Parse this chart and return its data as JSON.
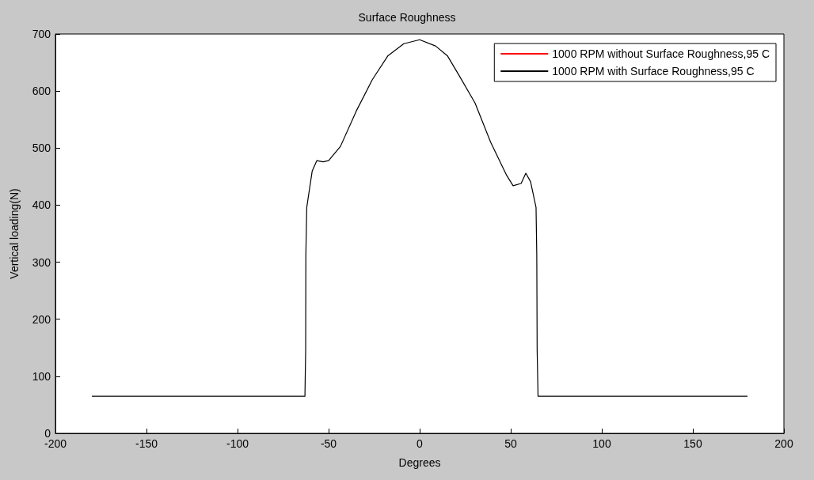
{
  "chart_data": {
    "type": "line",
    "title": "Surface Roughness",
    "xlabel": "Degrees",
    "ylabel": "Vertical loading(N)",
    "x": [
      -180,
      -63,
      -62.6,
      -62.5,
      -62,
      -59,
      -56.5,
      -53,
      -50,
      -43.5,
      -34.8,
      -26,
      -17.4,
      -8.7,
      0,
      8.7,
      15.2,
      21.7,
      30.4,
      39,
      47.8,
      51.3,
      55.7,
      58.3,
      60.9,
      63.9,
      64.3,
      64.5,
      65,
      180
    ],
    "series": [
      {
        "name": "1000 RPM without Surface Roughness,95 C",
        "color": "#ff0000",
        "values": [
          null,
          null,
          null,
          null,
          null,
          null,
          null,
          null,
          null,
          null,
          null,
          null,
          null,
          null,
          null,
          null,
          null,
          null,
          null,
          null,
          null,
          null,
          null,
          null,
          null,
          null,
          null,
          null,
          null,
          null
        ]
      },
      {
        "name": "1000 RPM with Surface Roughness,95 C",
        "color": "#000000",
        "values": [
          65,
          65,
          147,
          312,
          396,
          460,
          478,
          476,
          478,
          503,
          565,
          620,
          662,
          683,
          690,
          679,
          662,
          627,
          579,
          510,
          452,
          434,
          438,
          456,
          441,
          396,
          312,
          147,
          65,
          65
        ]
      }
    ],
    "xlim": [
      -200,
      200
    ],
    "xticks": [
      -200,
      -150,
      -100,
      -50,
      0,
      50,
      100,
      150,
      200
    ],
    "ylim": [
      0,
      700
    ],
    "yticks": [
      0,
      100,
      200,
      300,
      400,
      500,
      600,
      700
    ],
    "grid": false,
    "legend": "top right",
    "marker": "none",
    "line_style": "solid"
  }
}
